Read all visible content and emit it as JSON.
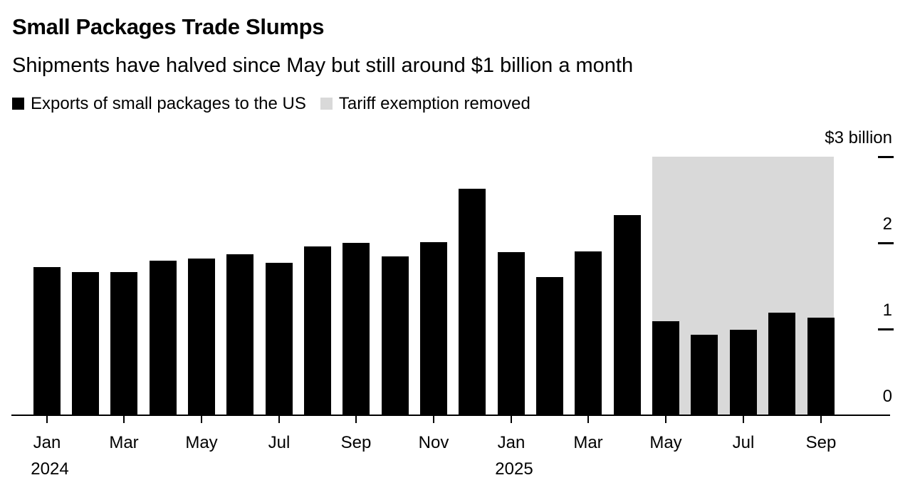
{
  "header": {
    "title": "Small Packages Trade Slumps",
    "subtitle": "Shipments have halved since May but still around $1 billion a month"
  },
  "legend": {
    "items": [
      {
        "label": "Exports of small packages to the US",
        "color": "#000000",
        "swatch": "bar-series-swatch"
      },
      {
        "label": "Tariff exemption removed",
        "color": "#d9d9d9",
        "swatch": "highlight-band-swatch"
      }
    ]
  },
  "y_axis": {
    "side": "right",
    "labels": [
      {
        "value": 3,
        "label": "$3 billion"
      },
      {
        "value": 2,
        "label": "2"
      },
      {
        "value": 1,
        "label": "1"
      },
      {
        "value": 0,
        "label": "0"
      }
    ],
    "tick_marks": [
      3,
      2,
      1
    ]
  },
  "x_axis": {
    "ticks": [
      {
        "month_index": 0,
        "label": "Jan",
        "year": "2024"
      },
      {
        "month_index": 2,
        "label": "Mar"
      },
      {
        "month_index": 4,
        "label": "May"
      },
      {
        "month_index": 6,
        "label": "Jul"
      },
      {
        "month_index": 8,
        "label": "Sep"
      },
      {
        "month_index": 10,
        "label": "Nov"
      },
      {
        "month_index": 12,
        "label": "Jan",
        "year": "2025"
      },
      {
        "month_index": 14,
        "label": "Mar"
      },
      {
        "month_index": 16,
        "label": "May"
      },
      {
        "month_index": 18,
        "label": "Jul"
      },
      {
        "month_index": 20,
        "label": "Sep"
      }
    ]
  },
  "colors": {
    "background": "#ffffff",
    "bar": "#000000",
    "band": "#d9d9d9",
    "axis": "#000000",
    "text": "#000000"
  },
  "chart_data": {
    "type": "bar",
    "title": "Small Packages Trade Slumps",
    "subtitle": "Shipments have halved since May but still around $1 billion a month",
    "unit": "USD billions per month",
    "ylim": [
      0,
      3
    ],
    "y_ticks": [
      0,
      1,
      2,
      3
    ],
    "grid": false,
    "legend_position": "top-left",
    "y_axis_side": "right",
    "categories": [
      "Jan 2024",
      "Feb 2024",
      "Mar 2024",
      "Apr 2024",
      "May 2024",
      "Jun 2024",
      "Jul 2024",
      "Aug 2024",
      "Sep 2024",
      "Oct 2024",
      "Nov 2024",
      "Dec 2024",
      "Jan 2025",
      "Feb 2025",
      "Mar 2025",
      "Apr 2025",
      "May 2025",
      "Jun 2025",
      "Jul 2025",
      "Aug 2025",
      "Sep 2025"
    ],
    "series": [
      {
        "name": "Exports of small packages to the US",
        "color": "#000000",
        "values": [
          1.72,
          1.66,
          1.66,
          1.79,
          1.82,
          1.87,
          1.77,
          1.96,
          2.0,
          1.84,
          2.01,
          2.63,
          1.89,
          1.6,
          1.9,
          2.32,
          1.09,
          0.93,
          0.99,
          1.19,
          1.13
        ]
      }
    ],
    "highlight_band": {
      "label": "Tariff exemption removed",
      "color": "#d9d9d9",
      "from": "May 2025",
      "to": "Sep 2025",
      "from_index": 16,
      "to_index": 20,
      "top_value": 3
    }
  }
}
